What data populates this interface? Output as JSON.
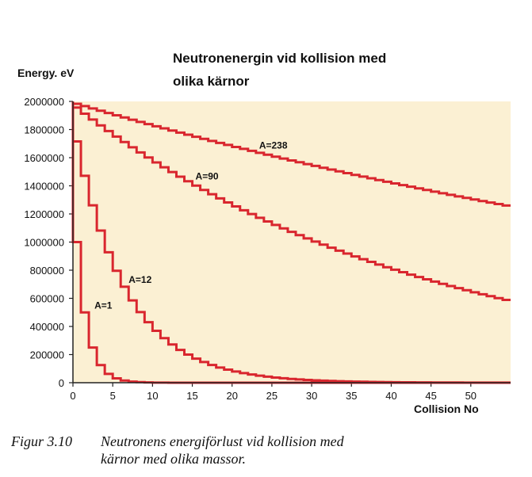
{
  "chart_data": {
    "type": "line",
    "title_lines": [
      "Neutronenergin vid kollision med",
      "olika kärnor"
    ],
    "ylabel": "Energy. eV",
    "xlabel": "Collision No",
    "xlim": [
      0,
      55
    ],
    "ylim": [
      0,
      2000000
    ],
    "x_ticks": [
      0,
      5,
      10,
      15,
      20,
      25,
      30,
      35,
      40,
      45,
      50
    ],
    "y_ticks": [
      0,
      200000,
      400000,
      600000,
      800000,
      1000000,
      1200000,
      1400000,
      1600000,
      1800000,
      2000000
    ],
    "x_tick_labels": [
      "0",
      "5",
      "10",
      "15",
      "20",
      "25",
      "30",
      "35",
      "40",
      "45",
      "50"
    ],
    "y_tick_labels": [
      "0",
      "200000",
      "400000",
      "600000",
      "800000",
      "1000000",
      "1200000",
      "1400000",
      "1600000",
      "1800000",
      "2000000"
    ],
    "step": true,
    "initial_energy": 2000000,
    "series": [
      {
        "name": "A=1",
        "mass": 1,
        "ratio": 0.5
      },
      {
        "name": "A=12",
        "mass": 12,
        "ratio": 0.8576
      },
      {
        "name": "A=90",
        "mass": 90,
        "ratio": 0.978
      },
      {
        "name": "A=238",
        "mass": 238,
        "ratio": 0.99163
      }
    ],
    "series_label_collision": [
      2.5,
      7,
      15,
      23
    ],
    "colors": {
      "line": "#d9262e",
      "plot_background": "#fbf0d3"
    },
    "grid": false
  },
  "caption": {
    "number": "Figur 3.10",
    "line1": "Neutronens energiförlust vid kollision med",
    "line2": "kärnor med olika massor."
  }
}
